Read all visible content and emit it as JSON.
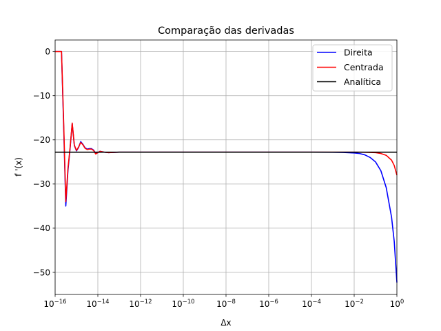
{
  "chart_data": {
    "type": "line",
    "title": "Comparação das derivadas",
    "xlabel": "Δx",
    "ylabel": "f '(x)",
    "xscale": "log",
    "xlim": [
      1e-16,
      1
    ],
    "ylim": [
      -55,
      2.6
    ],
    "grid": true,
    "legend_position": "top-right",
    "x_ticks": [
      {
        "value": 1e-16,
        "base": "10",
        "exp": "−16"
      },
      {
        "value": 1e-14,
        "base": "10",
        "exp": "−14"
      },
      {
        "value": 1e-12,
        "base": "10",
        "exp": "−12"
      },
      {
        "value": 1e-10,
        "base": "10",
        "exp": "−10"
      },
      {
        "value": 1e-08,
        "base": "10",
        "exp": "−8"
      },
      {
        "value": 1e-06,
        "base": "10",
        "exp": "−6"
      },
      {
        "value": 0.0001,
        "base": "10",
        "exp": "−4"
      },
      {
        "value": 0.01,
        "base": "10",
        "exp": "−2"
      },
      {
        "value": 1,
        "base": "10",
        "exp": "0"
      }
    ],
    "y_ticks": [
      {
        "value": 0,
        "label": "0"
      },
      {
        "value": -10,
        "label": "−10"
      },
      {
        "value": -20,
        "label": "−20"
      },
      {
        "value": -30,
        "label": "−30"
      },
      {
        "value": -40,
        "label": "−40"
      },
      {
        "value": -50,
        "label": "−50"
      }
    ],
    "series": [
      {
        "name": "Direita",
        "color": "#0000ff",
        "points": [
          [
            1e-16,
            0
          ],
          [
            1.58e-16,
            0
          ],
          [
            1.99e-16,
            0
          ],
          [
            2.51e-16,
            -17
          ],
          [
            3.16e-16,
            -35
          ],
          [
            3.98e-16,
            -27
          ],
          [
            5.01e-16,
            -22
          ],
          [
            6.31e-16,
            -16.3
          ],
          [
            7.94e-16,
            -21.3
          ],
          [
            1e-15,
            -22.5
          ],
          [
            1.26e-15,
            -21.7
          ],
          [
            1.58e-15,
            -20.4
          ],
          [
            1.99e-15,
            -21
          ],
          [
            2.51e-15,
            -21.8
          ],
          [
            3.16e-15,
            -22.1
          ],
          [
            3.98e-15,
            -22
          ],
          [
            5.01e-15,
            -22
          ],
          [
            6.31e-15,
            -22.3
          ],
          [
            7.94e-15,
            -23.1
          ],
          [
            1e-14,
            -22.9
          ],
          [
            1.26e-14,
            -22.6
          ],
          [
            1.58e-14,
            -22.7
          ],
          [
            1.99e-14,
            -22.8
          ],
          [
            3.16e-14,
            -22.9
          ],
          [
            5.01e-14,
            -22.85
          ],
          [
            1e-13,
            -22.8
          ],
          [
            1e-12,
            -22.8
          ],
          [
            1e-10,
            -22.8
          ],
          [
            1e-08,
            -22.8
          ],
          [
            1e-06,
            -22.8
          ],
          [
            0.0001,
            -22.8
          ],
          [
            0.001,
            -22.81
          ],
          [
            0.00316,
            -22.85
          ],
          [
            0.01,
            -22.97
          ],
          [
            0.0178,
            -23.1
          ],
          [
            0.0316,
            -23.4
          ],
          [
            0.0562,
            -24
          ],
          [
            0.1,
            -25
          ],
          [
            0.178,
            -27
          ],
          [
            0.316,
            -30.8
          ],
          [
            0.562,
            -37.5
          ],
          [
            0.75,
            -43
          ],
          [
            1,
            -52.3
          ]
        ]
      },
      {
        "name": "Centrada",
        "color": "#ff0000",
        "points": [
          [
            1e-16,
            0
          ],
          [
            1.58e-16,
            0
          ],
          [
            1.99e-16,
            0
          ],
          [
            2.51e-16,
            -16
          ],
          [
            3.16e-16,
            -34
          ],
          [
            3.98e-16,
            -26.5
          ],
          [
            5.01e-16,
            -21.8
          ],
          [
            6.31e-16,
            -16.2
          ],
          [
            7.94e-16,
            -21.2
          ],
          [
            1e-15,
            -22.4
          ],
          [
            1.26e-15,
            -21.6
          ],
          [
            1.58e-15,
            -20.6
          ],
          [
            1.99e-15,
            -21.1
          ],
          [
            2.51e-15,
            -21.9
          ],
          [
            3.16e-15,
            -22.2
          ],
          [
            3.98e-15,
            -22.1
          ],
          [
            5.01e-15,
            -22.1
          ],
          [
            6.31e-15,
            -22.4
          ],
          [
            7.94e-15,
            -23.2
          ],
          [
            1e-14,
            -22.9
          ],
          [
            1.26e-14,
            -22.6
          ],
          [
            1.58e-14,
            -22.7
          ],
          [
            1.99e-14,
            -22.8
          ],
          [
            3.16e-14,
            -22.9
          ],
          [
            5.01e-14,
            -22.85
          ],
          [
            1e-13,
            -22.8
          ],
          [
            1e-12,
            -22.8
          ],
          [
            1e-10,
            -22.8
          ],
          [
            1e-08,
            -22.8
          ],
          [
            1e-06,
            -22.8
          ],
          [
            0.0001,
            -22.8
          ],
          [
            0.01,
            -22.8
          ],
          [
            0.0316,
            -22.82
          ],
          [
            0.1,
            -22.9
          ],
          [
            0.178,
            -23.1
          ],
          [
            0.316,
            -23.5
          ],
          [
            0.562,
            -24.6
          ],
          [
            0.75,
            -25.8
          ],
          [
            1,
            -28
          ]
        ]
      },
      {
        "name": "Analítica",
        "color": "#000000",
        "points": [
          [
            1e-16,
            -22.8
          ],
          [
            1,
            -22.8
          ]
        ]
      }
    ]
  }
}
